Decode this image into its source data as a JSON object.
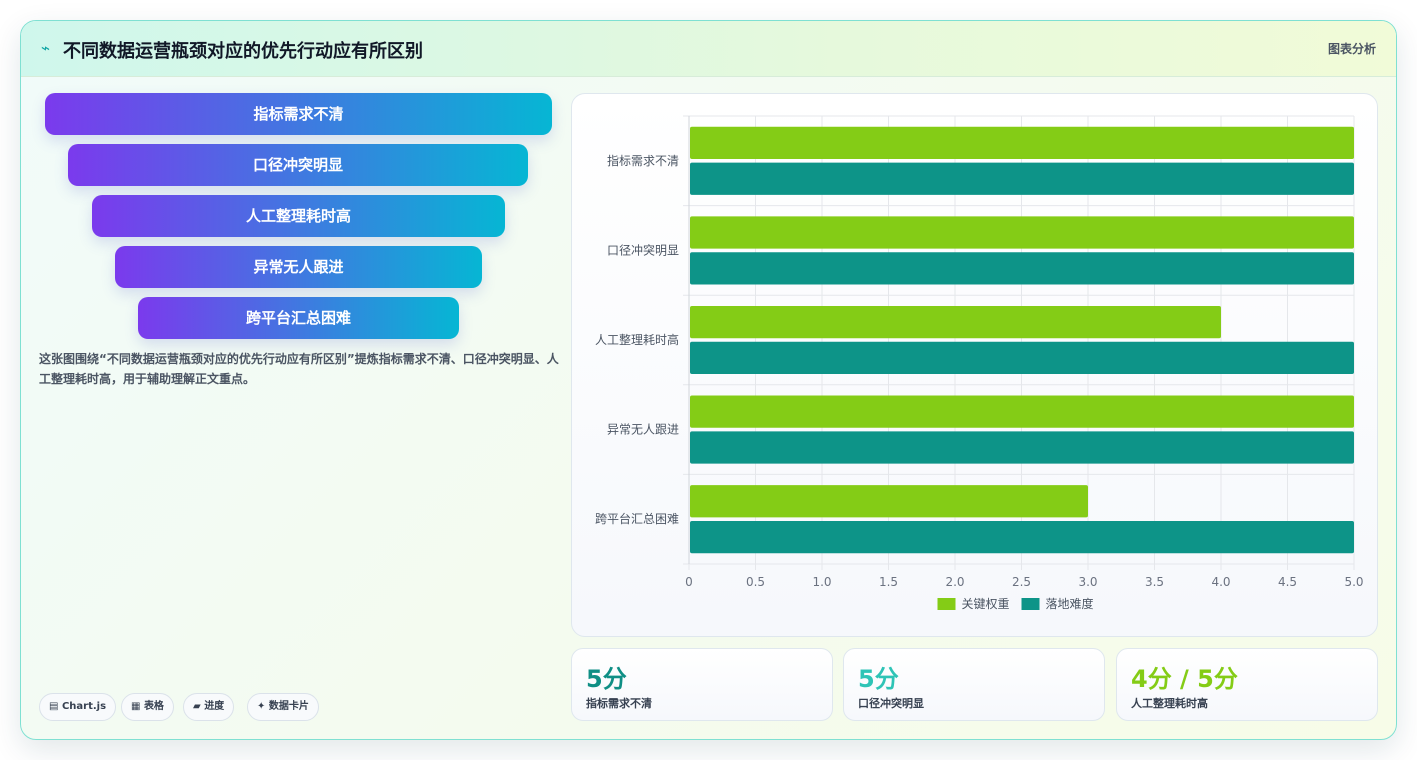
{
  "header": {
    "title": "不同数据运营瓶颈对应的优先行动应有所区别",
    "tag": "图表分析"
  },
  "funnel": {
    "items": [
      "指标需求不清",
      "口径冲突明显",
      "人工整理耗时高",
      "异常无人跟进",
      "跨平台汇总困难"
    ]
  },
  "description": "这张图围绕“不同数据运营瓶颈对应的优先行动应有所区别”提炼指标需求不清、口径冲突明显、人工整理耗时高，用于辅助理解正文重点。",
  "chips": [
    {
      "icon": "▤",
      "label": "Chart.js"
    },
    {
      "icon": "▦",
      "label": "表格"
    },
    {
      "icon": "▰",
      "label": "进度"
    },
    {
      "icon": "✦",
      "label": "数据卡片"
    }
  ],
  "kpis": [
    {
      "value": "5分",
      "label": "指标需求不清",
      "color": "#0f8f85"
    },
    {
      "value": "5分",
      "label": "口径冲突明显",
      "color": "#2ec4b6"
    },
    {
      "value": "4分 / 5分",
      "label": "人工整理耗时高",
      "color": "#84cc16"
    }
  ],
  "colors": {
    "series1": "#84cc16",
    "series2": "#0d9488",
    "accent": "#0ea5a4"
  },
  "chart_data": {
    "type": "bar",
    "orientation": "horizontal",
    "categories": [
      "指标需求不清",
      "口径冲突明显",
      "人工整理耗时高",
      "异常无人跟进",
      "跨平台汇总困难"
    ],
    "series": [
      {
        "name": "关键权重",
        "values": [
          5,
          5,
          4,
          5,
          3
        ],
        "color": "#84cc16"
      },
      {
        "name": "落地难度",
        "values": [
          5,
          5,
          5,
          5,
          5
        ],
        "color": "#0d9488"
      }
    ],
    "xticks": [
      "0",
      "0.5",
      "1.0",
      "1.5",
      "2.0",
      "2.5",
      "3.0",
      "3.5",
      "4.0",
      "4.5",
      "5.0"
    ],
    "xlim": [
      0,
      5
    ],
    "grid": true,
    "legend": "bottom"
  }
}
